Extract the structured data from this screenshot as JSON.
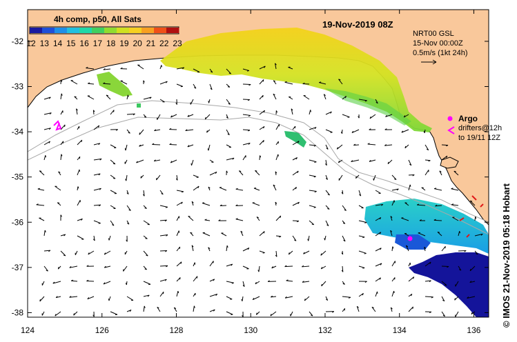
{
  "colorbar": {
    "title": "4h comp, p50, All Sats",
    "ticks": [
      "12",
      "13",
      "14",
      "15",
      "16",
      "17",
      "18",
      "19",
      "20",
      "21",
      "22",
      "23"
    ],
    "colors": [
      "#1a1aa0",
      "#1f4fd8",
      "#1e8fe8",
      "#20c0e0",
      "#20d8a8",
      "#40d060",
      "#90dc30",
      "#d0e020",
      "#f6d020",
      "#f8a020",
      "#f05018",
      "#b01010"
    ]
  },
  "header": {
    "date": "19-Nov-2019 08Z",
    "product": "NRT00 GSL",
    "product_time": "15-Nov 00:00Z",
    "velocity_scale": "0.5m/s (1kt 24h)"
  },
  "legend": {
    "argo_label": "Argo",
    "drifters_label": "drifters@12h",
    "drifters_until": "to 19/11 12Z"
  },
  "axes": {
    "x_ticks": [
      "124",
      "126",
      "128",
      "130",
      "132",
      "134",
      "136"
    ],
    "y_ticks": [
      "-32",
      "-33",
      "-34",
      "-35",
      "-36",
      "-37",
      "-38"
    ],
    "lon_range": [
      124,
      136.4
    ],
    "lat_range": [
      -38.1,
      -31.3
    ]
  },
  "credit": "© IMOS 21-Nov-2019 05:18 Hobart",
  "colors": {
    "land": "#f9c89b",
    "coast": "#000000",
    "isobath": "#a8a8a8",
    "argo": "#ff00ff",
    "drifter": "#ff00ff",
    "arrow": "#000000"
  }
}
